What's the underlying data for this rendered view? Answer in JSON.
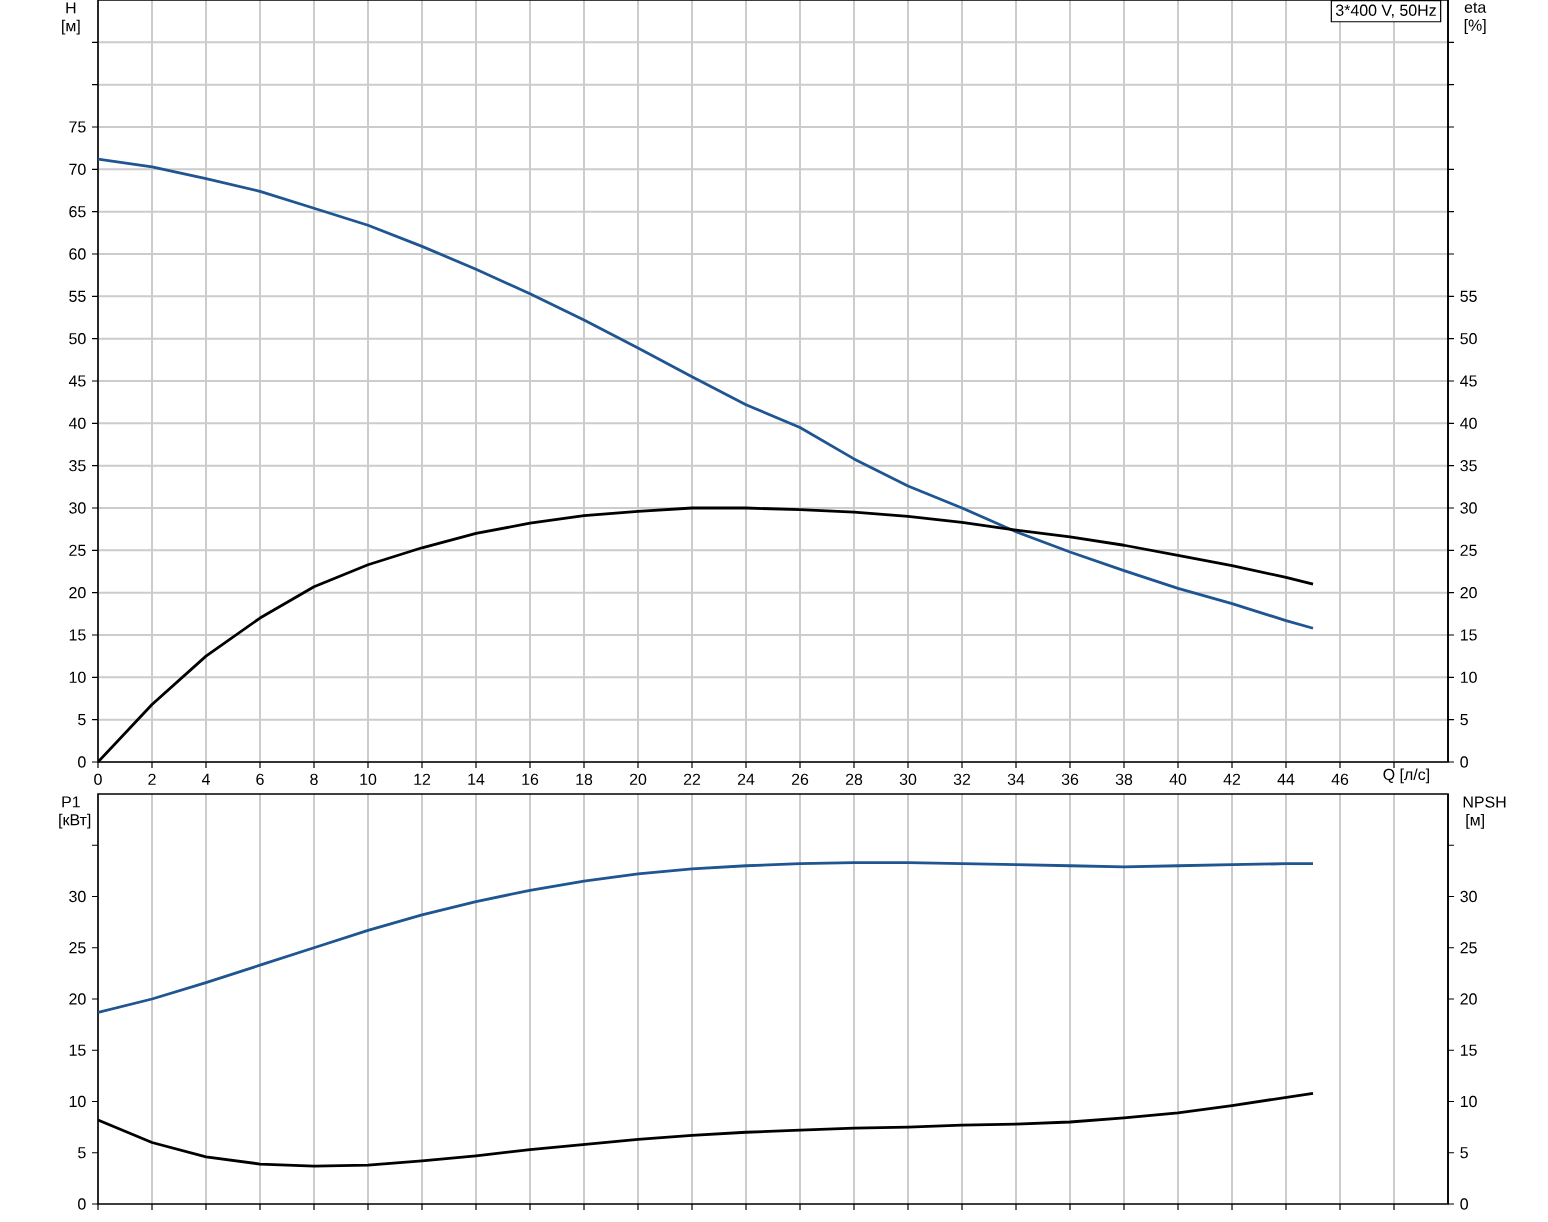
{
  "chart_data": [
    {
      "type": "line",
      "xlabel": "Q [л/с]",
      "ylabel": "H [м]",
      "y2label": "eta [%]",
      "annotations": [
        "3*400 V, 50Hz"
      ],
      "xlim": [
        0,
        50
      ],
      "xticks": [
        0,
        2,
        4,
        6,
        8,
        10,
        12,
        14,
        16,
        18,
        20,
        22,
        24,
        26,
        28,
        30,
        32,
        34,
        36,
        38,
        40,
        42,
        44,
        46,
        {
          "value": 48,
          "label": null
        }
      ],
      "ylim": [
        0,
        90
      ],
      "yticks": [
        0,
        5,
        10,
        15,
        20,
        25,
        30,
        35,
        40,
        45,
        50,
        55,
        60,
        65,
        70,
        75,
        {
          "value": 80,
          "label": null
        },
        {
          "value": 85,
          "label": null
        }
      ],
      "y2lim": [
        0,
        90
      ],
      "y2ticks": [
        0,
        5,
        10,
        15,
        20,
        25,
        30,
        35,
        40,
        45,
        50,
        55,
        {
          "value": 60,
          "label": null
        },
        {
          "value": 65,
          "label": null
        },
        {
          "value": 70,
          "label": null
        },
        {
          "value": 75,
          "label": null
        },
        {
          "value": 80,
          "label": null
        },
        {
          "value": 85,
          "label": null
        }
      ],
      "grid": true,
      "x": [
        0,
        2,
        4,
        6,
        8,
        10,
        12,
        14,
        16,
        18,
        20,
        22,
        24,
        26,
        28,
        30,
        32,
        34,
        36,
        38,
        40,
        42,
        44,
        45
      ],
      "series": [
        {
          "color": "#1f5591",
          "values": [
            71.2,
            70.3,
            68.9,
            67.4,
            65.4,
            63.4,
            60.9,
            58.2,
            55.3,
            52.2,
            48.9,
            45.5,
            42.2,
            39.5,
            35.8,
            32.6,
            30,
            27.2,
            24.8,
            22.6,
            20.5,
            18.7,
            16.7,
            15.8
          ]
        },
        {
          "color": "#000000",
          "axis": "y2",
          "values": [
            0,
            6.8,
            12.5,
            17,
            20.7,
            23.3,
            25.3,
            27,
            28.2,
            29.1,
            29.6,
            30,
            30,
            29.8,
            29.5,
            29,
            28.3,
            27.4,
            26.6,
            25.6,
            24.4,
            23.2,
            21.8,
            21
          ]
        }
      ]
    },
    {
      "type": "line",
      "ylabel": "P1 [кВт]",
      "y2label": "NPSH [м]",
      "tick_labels": "y",
      "xlim": [
        0,
        50
      ],
      "xticks": [
        0,
        2,
        4,
        6,
        8,
        10,
        12,
        14,
        16,
        18,
        20,
        22,
        24,
        26,
        28,
        30,
        32,
        34,
        36,
        38,
        40,
        42,
        44,
        46,
        48
      ],
      "ylim": [
        0,
        40
      ],
      "yticks": [
        0,
        5,
        10,
        15,
        20,
        25,
        30,
        {
          "value": 35,
          "label": null
        }
      ],
      "y2lim": [
        0,
        40
      ],
      "y2ticks": [
        0,
        5,
        10,
        15,
        20,
        25,
        30,
        {
          "value": 35,
          "label": null
        }
      ],
      "grid": "x",
      "x": [
        0,
        2,
        4,
        6,
        8,
        10,
        12,
        14,
        16,
        18,
        20,
        22,
        24,
        26,
        28,
        30,
        32,
        34,
        36,
        38,
        40,
        42,
        44,
        45
      ],
      "series": [
        {
          "color": "#1f5591",
          "values": [
            18.7,
            20,
            21.6,
            23.3,
            25,
            26.7,
            28.2,
            29.5,
            30.6,
            31.5,
            32.2,
            32.7,
            33,
            33.2,
            33.3,
            33.3,
            33.2,
            33.1,
            33,
            32.9,
            33,
            33.1,
            33.2,
            33.2
          ]
        },
        {
          "color": "#000000",
          "axis": "y2",
          "values": [
            8.2,
            6,
            4.6,
            3.9,
            3.7,
            3.8,
            4.2,
            4.7,
            5.3,
            5.8,
            6.3,
            6.7,
            7,
            7.2,
            7.4,
            7.5,
            7.7,
            7.8,
            8,
            8.4,
            8.9,
            9.6,
            10.4,
            10.8
          ]
        }
      ]
    }
  ]
}
